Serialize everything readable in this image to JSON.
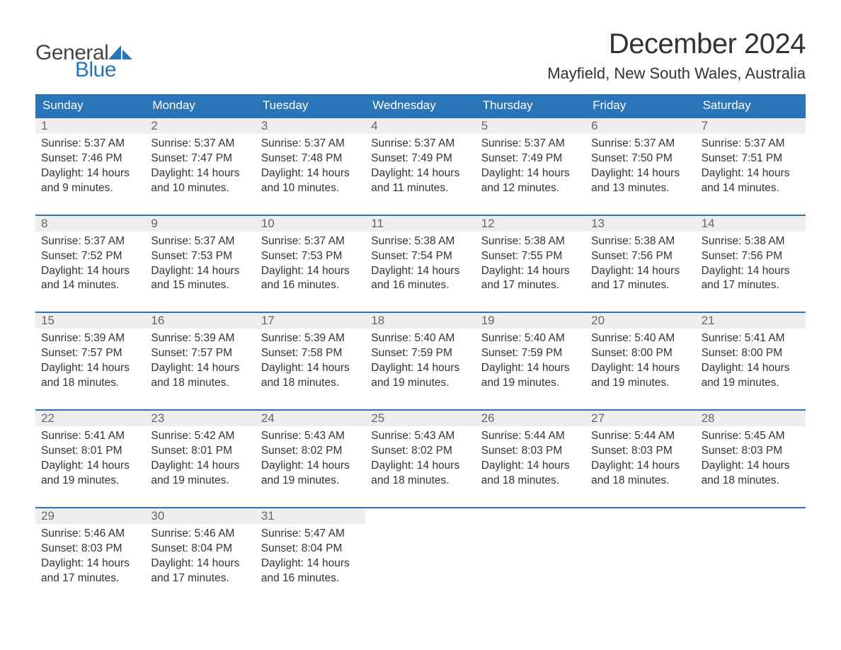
{
  "colors": {
    "brand_blue": "#2a74b8",
    "header_bg": "#2a74b8",
    "header_text": "#ffffff",
    "daynum_bg": "#eeeeee",
    "daynum_text": "#666666",
    "body_text": "#333333",
    "logo_gray": "#444444",
    "logo_blue": "#2a74b8",
    "background": "#ffffff"
  },
  "logo": {
    "word1": "General",
    "word2": "Blue"
  },
  "title": "December 2024",
  "location": "Mayfield, New South Wales, Australia",
  "day_headers": [
    "Sunday",
    "Monday",
    "Tuesday",
    "Wednesday",
    "Thursday",
    "Friday",
    "Saturday"
  ],
  "labels": {
    "sunrise_prefix": "Sunrise: ",
    "sunset_prefix": "Sunset: ",
    "daylight_prefix": "Daylight: ",
    "and": "and ",
    "hours_word": " hours",
    "minutes_suffix": " minutes."
  },
  "weeks": [
    [
      {
        "n": "1",
        "sunrise": "5:37 AM",
        "sunset": "7:46 PM",
        "dh": "14",
        "dm": "9"
      },
      {
        "n": "2",
        "sunrise": "5:37 AM",
        "sunset": "7:47 PM",
        "dh": "14",
        "dm": "10"
      },
      {
        "n": "3",
        "sunrise": "5:37 AM",
        "sunset": "7:48 PM",
        "dh": "14",
        "dm": "10"
      },
      {
        "n": "4",
        "sunrise": "5:37 AM",
        "sunset": "7:49 PM",
        "dh": "14",
        "dm": "11"
      },
      {
        "n": "5",
        "sunrise": "5:37 AM",
        "sunset": "7:49 PM",
        "dh": "14",
        "dm": "12"
      },
      {
        "n": "6",
        "sunrise": "5:37 AM",
        "sunset": "7:50 PM",
        "dh": "14",
        "dm": "13"
      },
      {
        "n": "7",
        "sunrise": "5:37 AM",
        "sunset": "7:51 PM",
        "dh": "14",
        "dm": "14"
      }
    ],
    [
      {
        "n": "8",
        "sunrise": "5:37 AM",
        "sunset": "7:52 PM",
        "dh": "14",
        "dm": "14"
      },
      {
        "n": "9",
        "sunrise": "5:37 AM",
        "sunset": "7:53 PM",
        "dh": "14",
        "dm": "15"
      },
      {
        "n": "10",
        "sunrise": "5:37 AM",
        "sunset": "7:53 PM",
        "dh": "14",
        "dm": "16"
      },
      {
        "n": "11",
        "sunrise": "5:38 AM",
        "sunset": "7:54 PM",
        "dh": "14",
        "dm": "16"
      },
      {
        "n": "12",
        "sunrise": "5:38 AM",
        "sunset": "7:55 PM",
        "dh": "14",
        "dm": "17"
      },
      {
        "n": "13",
        "sunrise": "5:38 AM",
        "sunset": "7:56 PM",
        "dh": "14",
        "dm": "17"
      },
      {
        "n": "14",
        "sunrise": "5:38 AM",
        "sunset": "7:56 PM",
        "dh": "14",
        "dm": "17"
      }
    ],
    [
      {
        "n": "15",
        "sunrise": "5:39 AM",
        "sunset": "7:57 PM",
        "dh": "14",
        "dm": "18"
      },
      {
        "n": "16",
        "sunrise": "5:39 AM",
        "sunset": "7:57 PM",
        "dh": "14",
        "dm": "18"
      },
      {
        "n": "17",
        "sunrise": "5:39 AM",
        "sunset": "7:58 PM",
        "dh": "14",
        "dm": "18"
      },
      {
        "n": "18",
        "sunrise": "5:40 AM",
        "sunset": "7:59 PM",
        "dh": "14",
        "dm": "19"
      },
      {
        "n": "19",
        "sunrise": "5:40 AM",
        "sunset": "7:59 PM",
        "dh": "14",
        "dm": "19"
      },
      {
        "n": "20",
        "sunrise": "5:40 AM",
        "sunset": "8:00 PM",
        "dh": "14",
        "dm": "19"
      },
      {
        "n": "21",
        "sunrise": "5:41 AM",
        "sunset": "8:00 PM",
        "dh": "14",
        "dm": "19"
      }
    ],
    [
      {
        "n": "22",
        "sunrise": "5:41 AM",
        "sunset": "8:01 PM",
        "dh": "14",
        "dm": "19"
      },
      {
        "n": "23",
        "sunrise": "5:42 AM",
        "sunset": "8:01 PM",
        "dh": "14",
        "dm": "19"
      },
      {
        "n": "24",
        "sunrise": "5:43 AM",
        "sunset": "8:02 PM",
        "dh": "14",
        "dm": "19"
      },
      {
        "n": "25",
        "sunrise": "5:43 AM",
        "sunset": "8:02 PM",
        "dh": "14",
        "dm": "18"
      },
      {
        "n": "26",
        "sunrise": "5:44 AM",
        "sunset": "8:03 PM",
        "dh": "14",
        "dm": "18"
      },
      {
        "n": "27",
        "sunrise": "5:44 AM",
        "sunset": "8:03 PM",
        "dh": "14",
        "dm": "18"
      },
      {
        "n": "28",
        "sunrise": "5:45 AM",
        "sunset": "8:03 PM",
        "dh": "14",
        "dm": "18"
      }
    ],
    [
      {
        "n": "29",
        "sunrise": "5:46 AM",
        "sunset": "8:03 PM",
        "dh": "14",
        "dm": "17"
      },
      {
        "n": "30",
        "sunrise": "5:46 AM",
        "sunset": "8:04 PM",
        "dh": "14",
        "dm": "17"
      },
      {
        "n": "31",
        "sunrise": "5:47 AM",
        "sunset": "8:04 PM",
        "dh": "14",
        "dm": "16"
      },
      null,
      null,
      null,
      null
    ]
  ]
}
